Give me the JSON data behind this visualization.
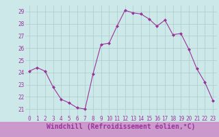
{
  "x": [
    0,
    1,
    2,
    3,
    4,
    5,
    6,
    7,
    8,
    9,
    10,
    11,
    12,
    13,
    14,
    15,
    16,
    17,
    18,
    19,
    20,
    21,
    22,
    23
  ],
  "y": [
    24.1,
    24.4,
    24.1,
    22.8,
    21.8,
    21.5,
    21.1,
    21.0,
    23.9,
    26.3,
    26.4,
    27.8,
    29.1,
    28.9,
    28.8,
    28.4,
    27.8,
    28.3,
    27.1,
    27.2,
    25.9,
    24.3,
    23.2,
    21.7
  ],
  "line_color": "#993399",
  "marker": "D",
  "marker_size": 2.0,
  "bg_color": "#cce8e8",
  "grid_color": "#aacccc",
  "xlabel": "Windchill (Refroidissement éolien,°C)",
  "xlabel_color": "#993399",
  "xlabel_bg": "#cc99cc",
  "xlabel_fontsize": 7,
  "tick_color": "#993399",
  "tick_fontsize": 5.5,
  "ylim": [
    20.5,
    29.5
  ],
  "xlim": [
    -0.5,
    23.5
  ],
  "yticks": [
    21,
    22,
    23,
    24,
    25,
    26,
    27,
    28,
    29
  ],
  "xticks": [
    0,
    1,
    2,
    3,
    4,
    5,
    6,
    7,
    8,
    9,
    10,
    11,
    12,
    13,
    14,
    15,
    16,
    17,
    18,
    19,
    20,
    21,
    22,
    23
  ]
}
